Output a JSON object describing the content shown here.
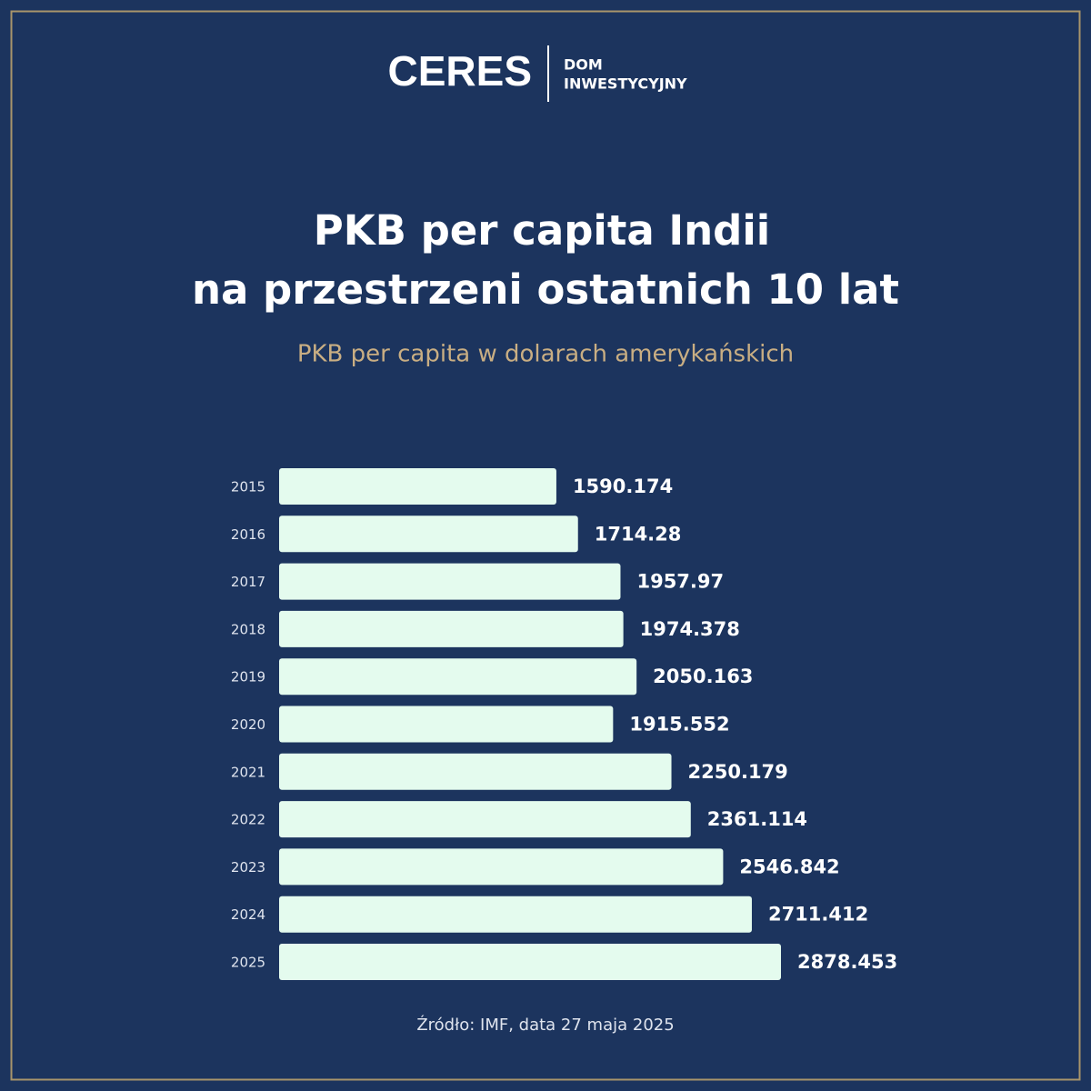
{
  "header": {
    "brand": "CERES",
    "brand_sub": [
      "DOM",
      "INWESTYCYJNY"
    ]
  },
  "chart_data": {
    "type": "bar",
    "orientation": "horizontal",
    "title": [
      "PKB per capita Indii",
      "na przestrzeni ostatnich 10 lat"
    ],
    "subtitle": "PKB per capita w dolarach amerykańskich",
    "categories": [
      "2015",
      "2016",
      "2017",
      "2018",
      "2019",
      "2020",
      "2021",
      "2022",
      "2023",
      "2024",
      "2025"
    ],
    "values": [
      1590.174,
      1714.28,
      1957.97,
      1974.378,
      2050.163,
      1915.552,
      2250.179,
      2361.114,
      2546.842,
      2711.412,
      2878.453
    ],
    "color": "#e4fbee",
    "source": "Źródło: IMF, data 27 maja 2025"
  }
}
